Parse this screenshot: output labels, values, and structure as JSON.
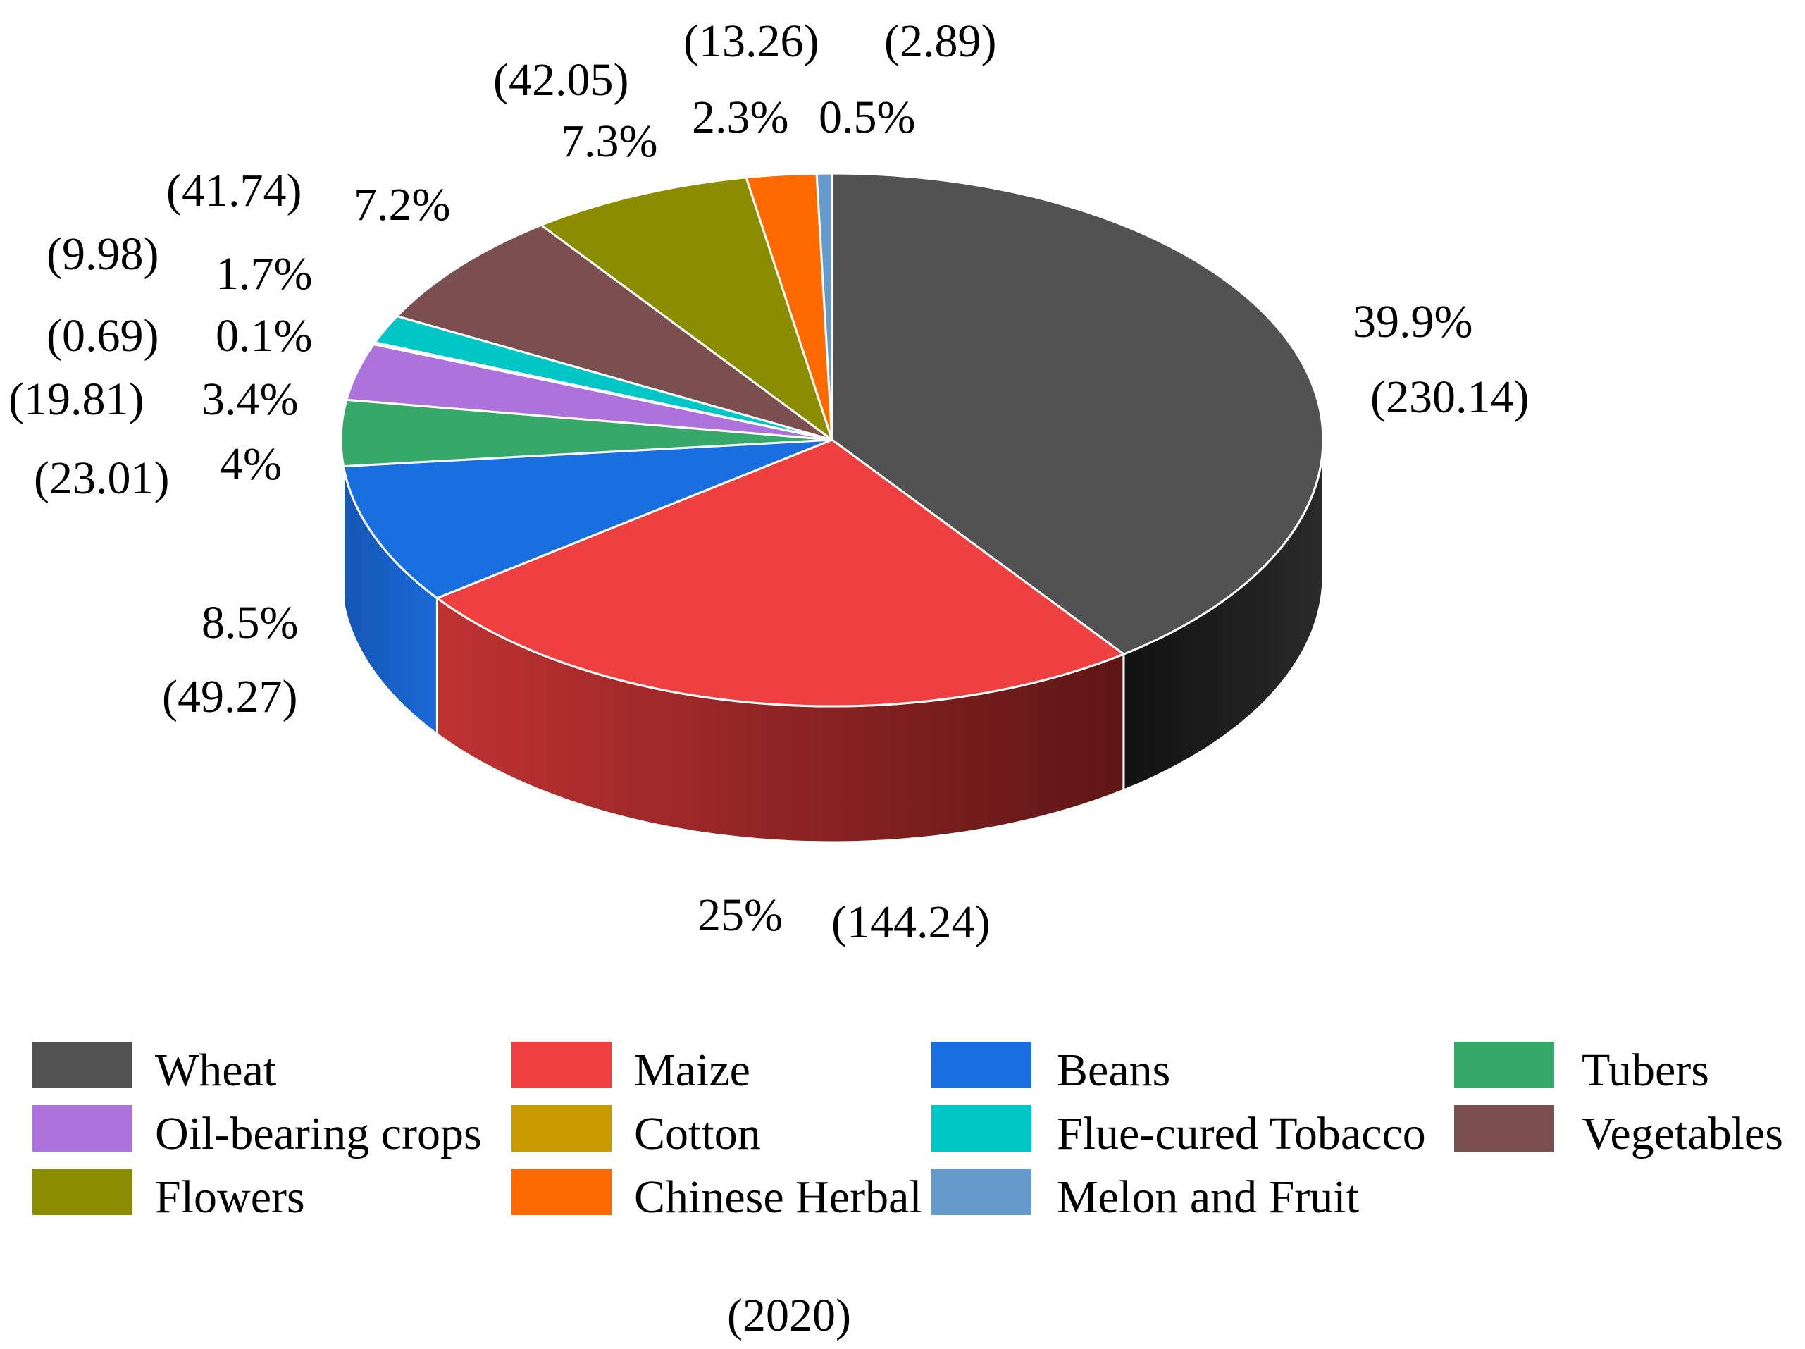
{
  "chart_data": {
    "type": "pie",
    "style": "3d",
    "caption": "(2020)",
    "legend_position": "bottom",
    "slices": [
      {
        "name": "Wheat",
        "value": 230.14,
        "percent_label": "39.9%",
        "value_label": "(230.14)",
        "color": "#525252",
        "side_color": "#222222"
      },
      {
        "name": "Maize",
        "value": 144.24,
        "percent_label": "25%",
        "value_label": "(144.24)",
        "color": "#ee4040",
        "side_color": "#a02828"
      },
      {
        "name": "Beans",
        "value": 49.27,
        "percent_label": "8.5%",
        "value_label": "(49.27)",
        "color": "#1a6fe0",
        "side_color": "#1458b8"
      },
      {
        "name": "Tubers",
        "value": 23.01,
        "percent_label": "4%",
        "value_label": "(23.01)",
        "color": "#36a86a",
        "side_color": "#267a4d"
      },
      {
        "name": "Oil-bearing crops",
        "value": 19.81,
        "percent_label": "3.4%",
        "value_label": "(19.81)",
        "color": "#ad72dc",
        "side_color": "#7e50a4"
      },
      {
        "name": "Cotton",
        "value": 0.69,
        "percent_label": "0.1%",
        "value_label": "(0.69)",
        "color": "#c99a00",
        "side_color": "#917000"
      },
      {
        "name": "Flue-cured Tobacco",
        "value": 9.98,
        "percent_label": "1.7%",
        "value_label": "(9.98)",
        "color": "#00c6c6",
        "side_color": "#009090"
      },
      {
        "name": "Vegetables",
        "value": 41.74,
        "percent_label": "7.2%",
        "value_label": "(41.74)",
        "color": "#7b4f4f",
        "side_color": "#573737"
      },
      {
        "name": "Flowers",
        "value": 42.05,
        "percent_label": "7.3%",
        "value_label": "(42.05)",
        "color": "#8c8c00",
        "side_color": "#636300"
      },
      {
        "name": "Chinese Herbal",
        "value": 13.26,
        "percent_label": "2.3%",
        "value_label": "(13.26)",
        "color": "#ff6a00",
        "side_color": "#b84c00"
      },
      {
        "name": "Melon and Fruit",
        "value": 2.89,
        "percent_label": "0.5%",
        "value_label": "(2.89)",
        "color": "#6699cc",
        "side_color": "#4a7299"
      }
    ]
  }
}
